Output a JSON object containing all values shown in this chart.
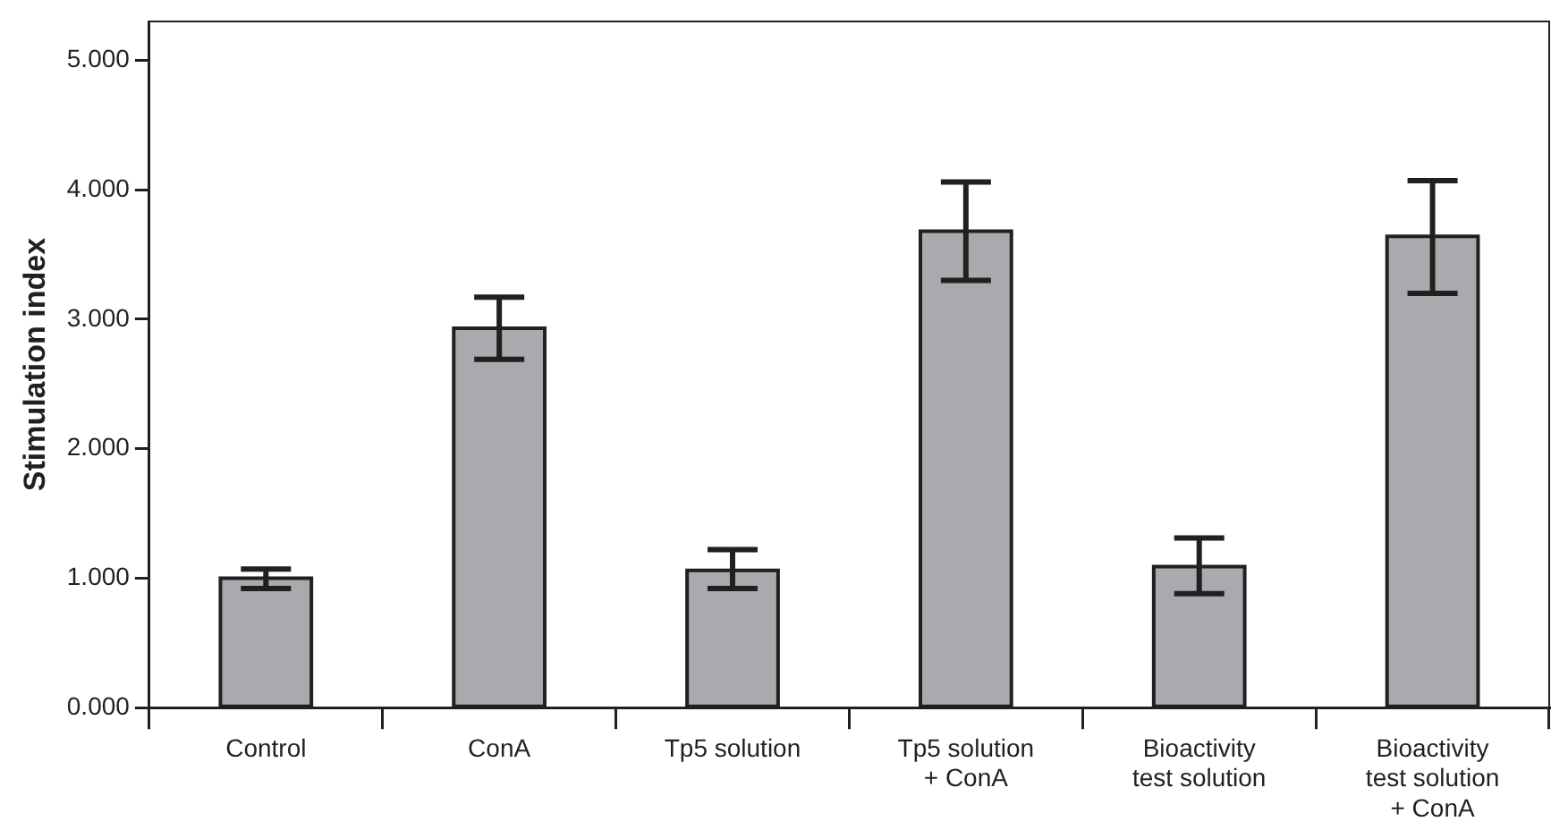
{
  "chart_data": {
    "type": "bar",
    "ylabel": "Stimulation index",
    "categories": [
      "Control",
      "ConA",
      "Tp5 solution",
      "Tp5 solution + ConA",
      "Bioactivity test solution",
      "Bioactivity test solution + ConA"
    ],
    "values": [
      1.0,
      2.93,
      1.06,
      3.68,
      1.09,
      3.64
    ],
    "errors": [
      [
        0.92,
        1.07
      ],
      [
        2.69,
        3.17
      ],
      [
        0.92,
        1.22
      ],
      [
        3.3,
        4.06
      ],
      [
        0.88,
        1.31
      ],
      [
        3.2,
        4.07
      ]
    ],
    "color": "#a9aaad",
    "ylim": [
      0,
      5.3
    ],
    "yticks": [
      {
        "value": 0,
        "label": "0.000"
      },
      {
        "value": 1,
        "label": "1.000"
      },
      {
        "value": 2,
        "label": "2.000"
      },
      {
        "value": 3,
        "label": "3.000"
      },
      {
        "value": 4,
        "label": "4.000"
      },
      {
        "value": 5,
        "label": "5.000"
      }
    ],
    "grid": false,
    "legend": false
  }
}
